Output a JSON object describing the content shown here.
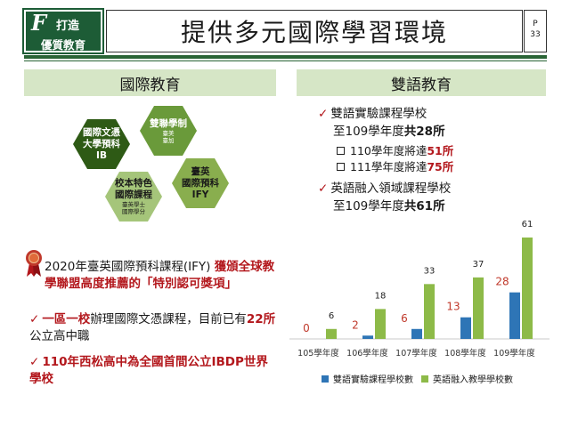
{
  "header": {
    "logo_letter": "F",
    "logo_line1": "打造",
    "logo_line2": "優質教育",
    "title": "提供多元國際學習環境",
    "page_label": "P",
    "page_number": "33"
  },
  "left": {
    "section_title": "國際教育",
    "hexagons": {
      "ib_line1": "國際文憑",
      "ib_line2": "大學預科",
      "ib_line3": "IB",
      "dual_line1": "雙聯學制",
      "dual_line2": "臺美",
      "dual_line3": "臺加",
      "own_line1": "校本特色",
      "own_line2": "國際課程",
      "own_line3": "臺英學士",
      "own_line4": "國際學分",
      "ify_line1": "臺英",
      "ify_line2": "國際預科",
      "ify_line3": "IFY"
    },
    "ify_normal": "2020年臺英國際預科課程(IFY) ",
    "ify_red": "獲頒全球教學聯盟高度推薦的「特別認可獎項」",
    "item1_red": "一區一校",
    "item1_rest": "辦理國際文憑課程，目前已有",
    "item1_num": "22所",
    "item1_tail": "公立高中職",
    "item2": "110年西松高中為全國首間公立IBDP世界學校"
  },
  "right": {
    "section_title": "雙語教育",
    "bullet1_line1": "雙語實驗課程學校",
    "bullet1_line2_pre": "至109學年度",
    "bullet1_line2_bold": "共28所",
    "sub1_pre": "110學年度將達",
    "sub1_num": "51所",
    "sub2_pre": "111學年度將達",
    "sub2_num": "75所",
    "bullet2_line1": "英語融入領域課程學校",
    "bullet2_line2_pre": "至109學年度",
    "bullet2_line2_bold": "共61所",
    "check_glyph": "✓"
  },
  "colors": {
    "brand_green": "#1d5c36",
    "section_bg": "#d6e6c6",
    "accent_red": "#b3171c",
    "series_blue": "#2e75b6",
    "series_green": "#8dba48"
  },
  "chart_data": {
    "type": "bar",
    "categories": [
      "105學年度",
      "106學年度",
      "107學年度",
      "108學年度",
      "109學年度"
    ],
    "series": [
      {
        "name": "雙語實驗課程學校數",
        "values": [
          0,
          2,
          6,
          13,
          28
        ],
        "color": "#2e75b6",
        "label_color": "#c0392b"
      },
      {
        "name": "英語融入教學學校數",
        "values": [
          6,
          18,
          33,
          37,
          61
        ],
        "color": "#8dba48",
        "label_color": "#222222"
      }
    ],
    "ylim": [
      0,
      61
    ],
    "grid": false,
    "legend": "bottom"
  }
}
